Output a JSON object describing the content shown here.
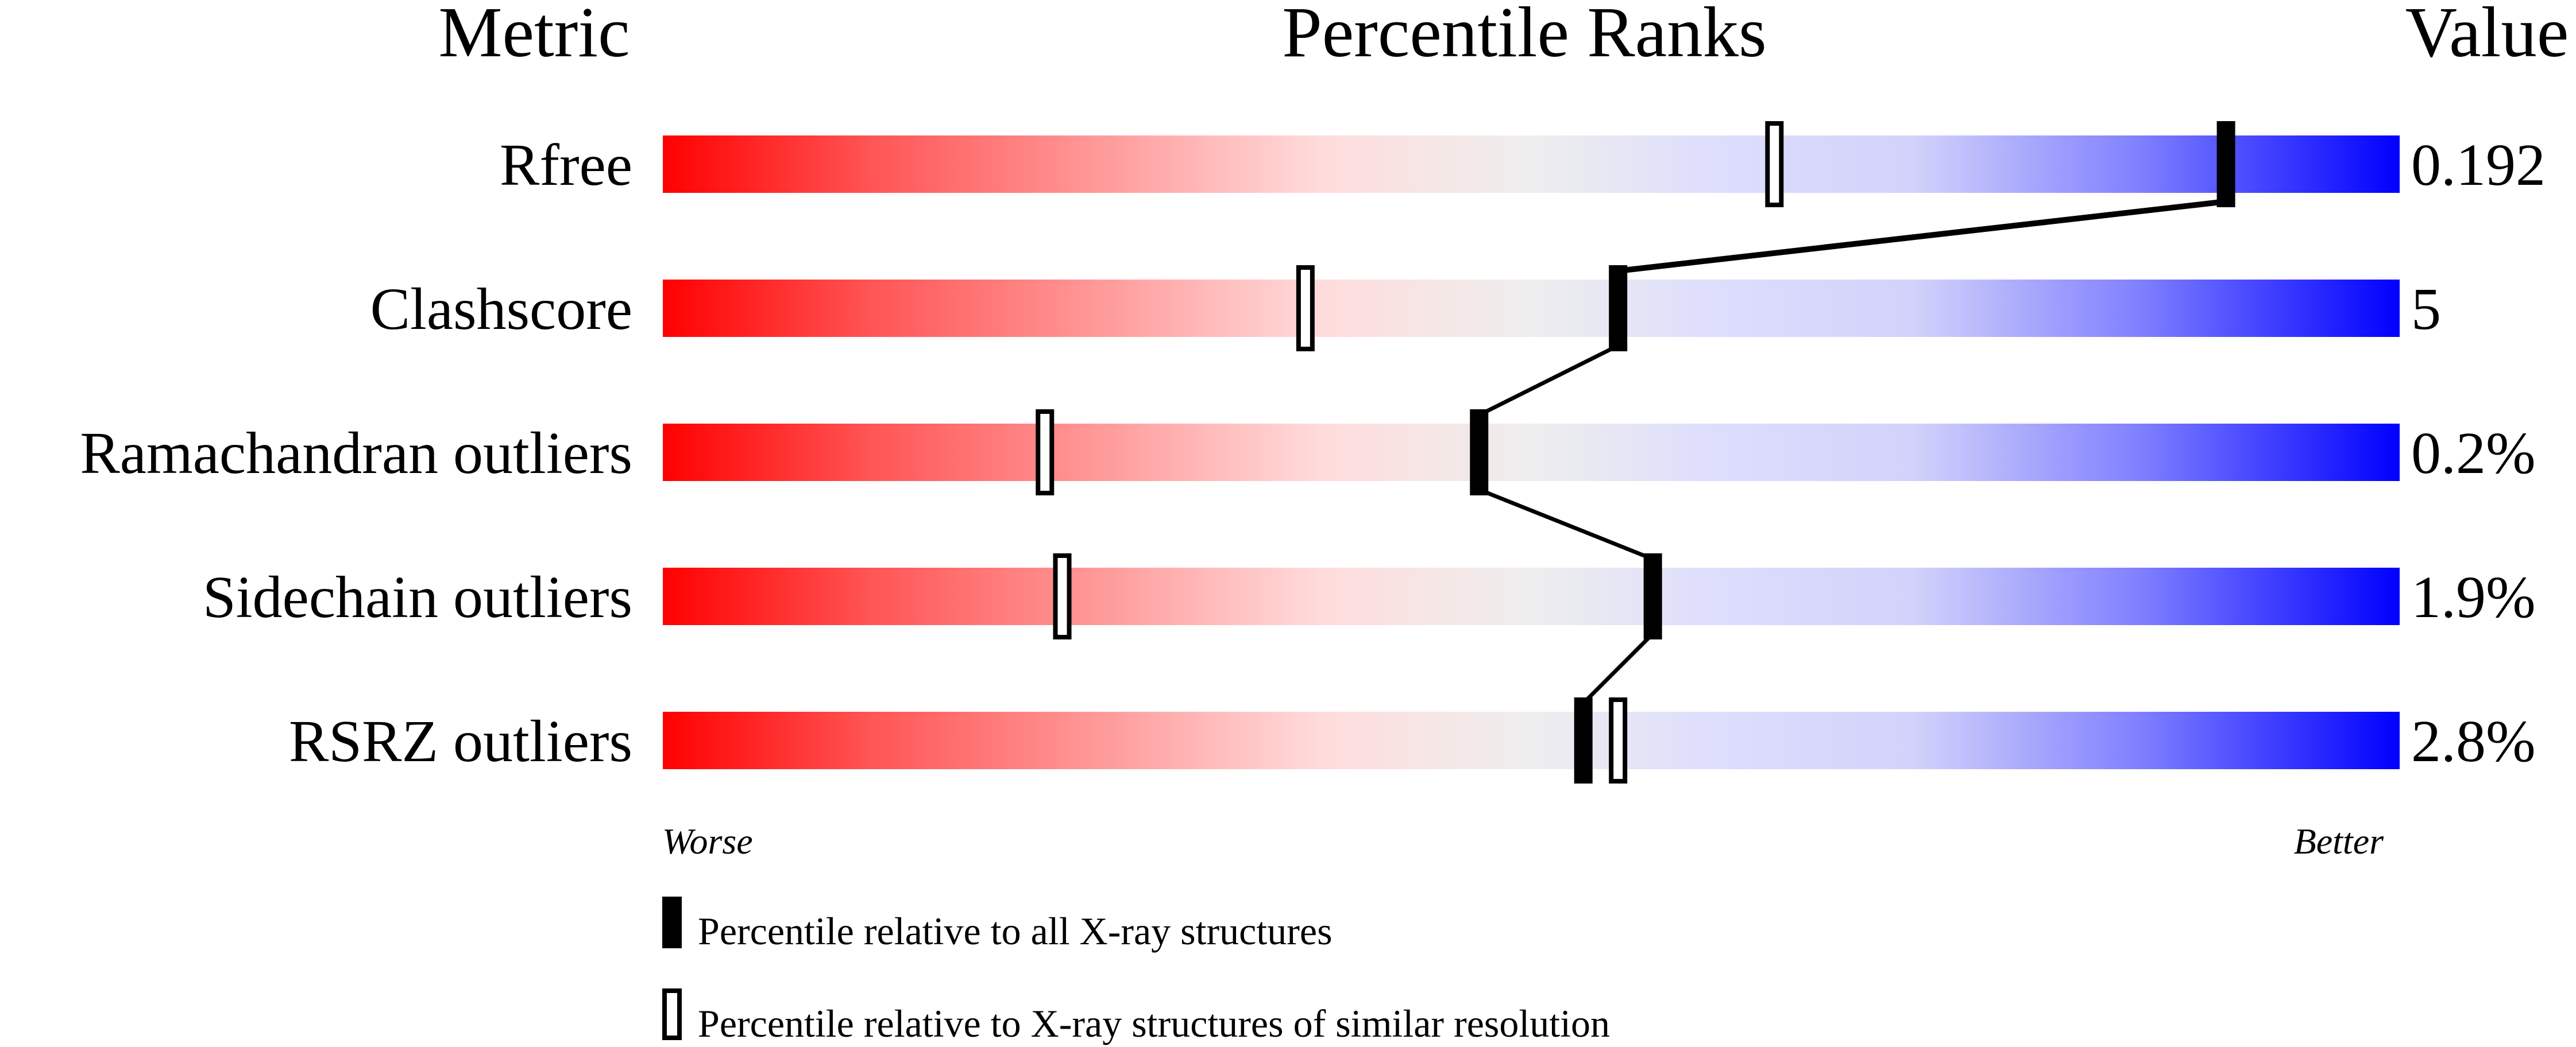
{
  "chart_data": {
    "type": "percentile-slider",
    "headers": {
      "metric": "Metric",
      "ranks": "Percentile Ranks",
      "value": "Value"
    },
    "xlim": [
      0,
      100
    ],
    "axis_labels": {
      "left": "Worse",
      "right": "Better"
    },
    "gradient_colors": {
      "worse": "#ff0000",
      "middle": "#eeeeee",
      "better": "#0000ff"
    },
    "rows": [
      {
        "metric": "Rfree",
        "value": "0.192",
        "percentile_all": 90,
        "percentile_similar": 64
      },
      {
        "metric": "Clashscore",
        "value": "5",
        "percentile_all": 55,
        "percentile_similar": 37
      },
      {
        "metric": "Ramachandran outliers",
        "value": "0.2%",
        "percentile_all": 47,
        "percentile_similar": 22
      },
      {
        "metric": "Sidechain outliers",
        "value": "1.9%",
        "percentile_all": 57,
        "percentile_similar": 23
      },
      {
        "metric": "RSRZ outliers",
        "value": "2.8%",
        "percentile_all": 53,
        "percentile_similar": 55
      }
    ],
    "legend": [
      {
        "marker": "filled",
        "label": "Percentile relative to all X-ray structures"
      },
      {
        "marker": "open",
        "label": "Percentile relative to X-ray structures of similar resolution"
      }
    ]
  }
}
